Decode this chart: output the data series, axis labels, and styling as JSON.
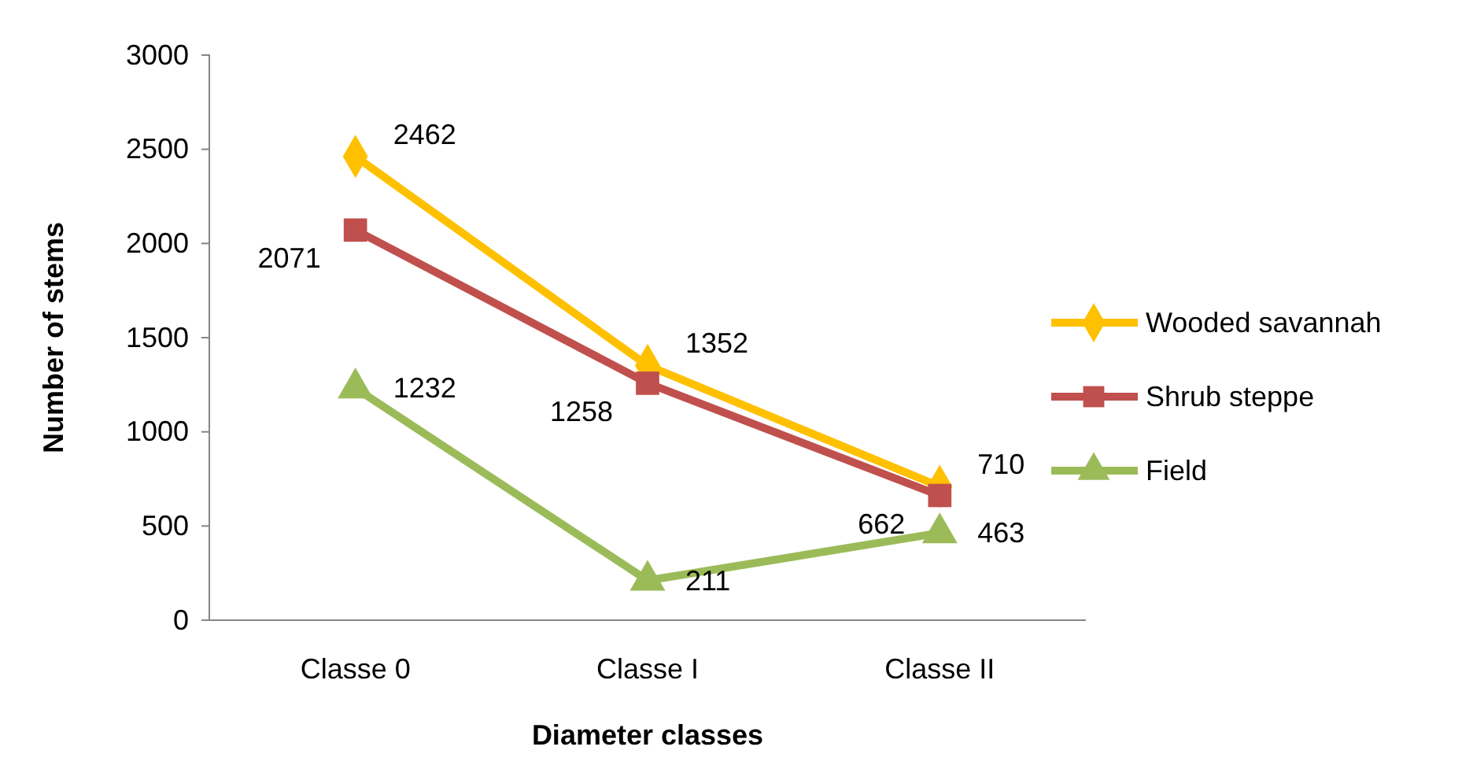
{
  "chart_data": {
    "type": "line",
    "xlabel": "Diameter classes",
    "ylabel": "Number of stems",
    "categories": [
      "Classe 0",
      "Classe I",
      "Classe II"
    ],
    "series": [
      {
        "name": "Wooded savannah",
        "color": "#ffc000",
        "marker": "diamond",
        "values": [
          2462,
          1352,
          710
        ]
      },
      {
        "name": "Shrub steppe",
        "color": "#c0504d",
        "marker": "square",
        "values": [
          2071,
          1258,
          662
        ]
      },
      {
        "name": "Field",
        "color": "#9bbb59",
        "marker": "triangle",
        "values": [
          1232,
          211,
          463
        ]
      }
    ],
    "ylim": [
      0,
      3000
    ],
    "yticks": [
      0,
      500,
      1000,
      1500,
      2000,
      2500,
      3000
    ],
    "data_labels": true,
    "legend": "right",
    "grid": false
  }
}
